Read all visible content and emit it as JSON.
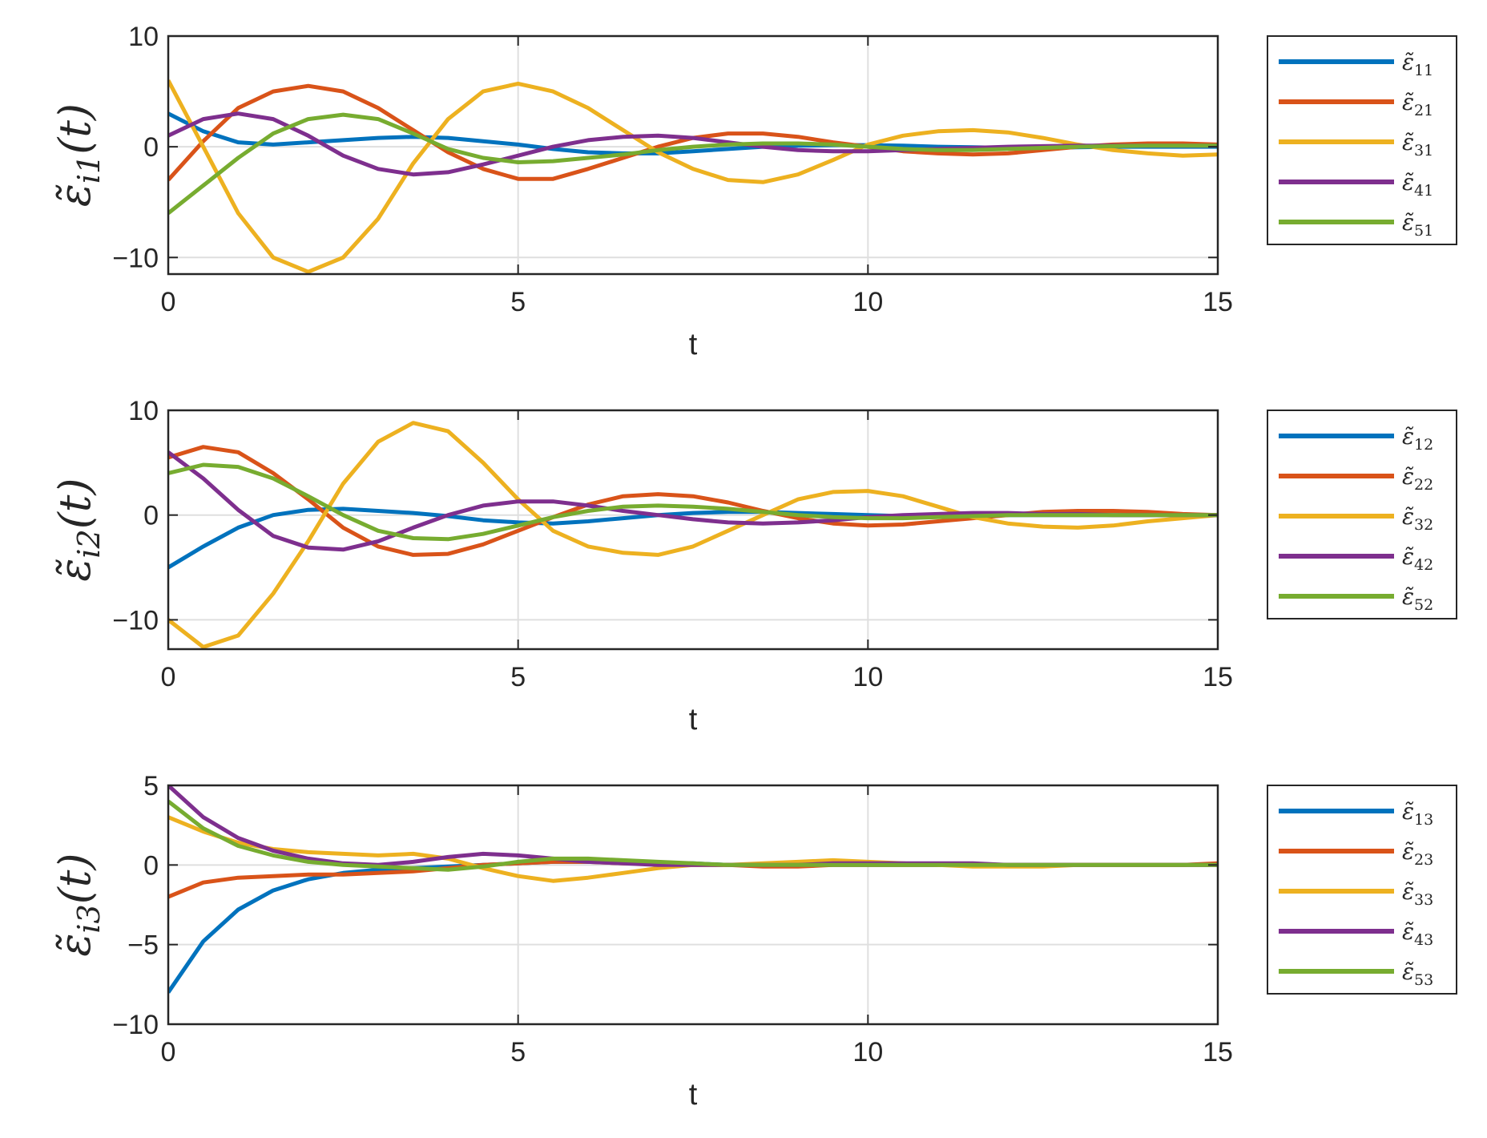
{
  "colors": {
    "blue": "#0072BD",
    "orange": "#D95319",
    "yellow": "#EDB120",
    "purple": "#7E2F8E",
    "green": "#77AC30"
  },
  "chart_data": [
    {
      "type": "line",
      "xlabel": "t",
      "ylabel": "ε̃i1(t)",
      "xlim": [
        0,
        15
      ],
      "ylim": [
        -11.5,
        10
      ],
      "xticks": [
        "0",
        "5",
        "10",
        "15"
      ],
      "yticks": [
        "10",
        "0",
        "−10"
      ],
      "ytick_values": [
        10,
        0,
        -10
      ],
      "grid": true,
      "legend_position": "outside-right",
      "series": [
        {
          "name": "ε̃11",
          "color": "#0072BD",
          "x": [
            0,
            0.5,
            1,
            1.5,
            2,
            2.5,
            3,
            3.5,
            4,
            4.5,
            5,
            5.5,
            6,
            6.5,
            7,
            7.5,
            8,
            8.5,
            9,
            9.5,
            10,
            10.5,
            11,
            11.5,
            12,
            12.5,
            13,
            13.5,
            14,
            14.5,
            15
          ],
          "y": [
            3,
            1.4,
            0.4,
            0.2,
            0.4,
            0.6,
            0.8,
            0.9,
            0.8,
            0.5,
            0.2,
            -0.2,
            -0.5,
            -0.6,
            -0.6,
            -0.4,
            -0.2,
            0,
            0.1,
            0.15,
            0.15,
            0.1,
            0,
            -0.05,
            -0.1,
            -0.1,
            -0.05,
            0,
            0,
            0,
            0
          ]
        },
        {
          "name": "ε̃21",
          "color": "#D95319",
          "x": [
            0,
            0.5,
            1,
            1.5,
            2,
            2.5,
            3,
            3.5,
            4,
            4.5,
            5,
            5.5,
            6,
            6.5,
            7,
            7.5,
            8,
            8.5,
            9,
            9.5,
            10,
            10.5,
            11,
            11.5,
            12,
            12.5,
            13,
            13.5,
            14,
            14.5,
            15
          ],
          "y": [
            -3,
            0.5,
            3.5,
            5,
            5.5,
            5,
            3.5,
            1.5,
            -0.5,
            -2,
            -2.9,
            -2.9,
            -2,
            -1,
            0,
            0.8,
            1.2,
            1.2,
            0.9,
            0.4,
            0,
            -0.4,
            -0.6,
            -0.7,
            -0.6,
            -0.3,
            0,
            0.2,
            0.3,
            0.3,
            0.2
          ]
        },
        {
          "name": "ε̃31",
          "color": "#EDB120",
          "x": [
            0,
            0.5,
            1,
            1.5,
            2,
            2.5,
            3,
            3.5,
            4,
            4.5,
            5,
            5.5,
            6,
            6.5,
            7,
            7.5,
            8,
            8.5,
            9,
            9.5,
            10,
            10.5,
            11,
            11.5,
            12,
            12.5,
            13,
            13.5,
            14,
            14.5,
            15
          ],
          "y": [
            6,
            0,
            -6,
            -10,
            -11.3,
            -10,
            -6.5,
            -1.5,
            2.5,
            5,
            5.7,
            5,
            3.5,
            1.5,
            -0.5,
            -2,
            -3,
            -3.2,
            -2.5,
            -1.2,
            0.2,
            1,
            1.4,
            1.5,
            1.3,
            0.8,
            0.2,
            -0.3,
            -0.6,
            -0.8,
            -0.7
          ]
        },
        {
          "name": "ε̃41",
          "color": "#7E2F8E",
          "x": [
            0,
            0.5,
            1,
            1.5,
            2,
            2.5,
            3,
            3.5,
            4,
            4.5,
            5,
            5.5,
            6,
            6.5,
            7,
            7.5,
            8,
            8.5,
            9,
            9.5,
            10,
            10.5,
            11,
            11.5,
            12,
            12.5,
            13,
            13.5,
            14,
            14.5,
            15
          ],
          "y": [
            1,
            2.5,
            3,
            2.5,
            1,
            -0.8,
            -2,
            -2.5,
            -2.3,
            -1.6,
            -0.8,
            0,
            0.6,
            0.9,
            1,
            0.8,
            0.4,
            0,
            -0.3,
            -0.4,
            -0.4,
            -0.3,
            -0.2,
            -0.1,
            0,
            0.05,
            0.1,
            0.1,
            0.1,
            0.1,
            0.1
          ]
        },
        {
          "name": "ε̃51",
          "color": "#77AC30",
          "x": [
            0,
            0.5,
            1,
            1.5,
            2,
            2.5,
            3,
            3.5,
            4,
            4.5,
            5,
            5.5,
            6,
            6.5,
            7,
            7.5,
            8,
            8.5,
            9,
            9.5,
            10,
            10.5,
            11,
            11.5,
            12,
            12.5,
            13,
            13.5,
            14,
            14.5,
            15
          ],
          "y": [
            -6,
            -3.5,
            -1,
            1.2,
            2.5,
            2.9,
            2.5,
            1.2,
            -0.2,
            -1,
            -1.4,
            -1.3,
            -1,
            -0.7,
            -0.3,
            0,
            0.2,
            0.3,
            0.3,
            0.2,
            0,
            -0.2,
            -0.3,
            -0.3,
            -0.2,
            -0.1,
            0,
            0.05,
            0.1,
            0.1,
            0.1
          ]
        }
      ]
    },
    {
      "type": "line",
      "xlabel": "t",
      "ylabel": "ε̃i2(t)",
      "xlim": [
        0,
        15
      ],
      "ylim": [
        -12.8,
        10
      ],
      "xticks": [
        "0",
        "5",
        "10",
        "15"
      ],
      "yticks": [
        "10",
        "0",
        "−10"
      ],
      "ytick_values": [
        10,
        0,
        -10
      ],
      "grid": true,
      "legend_position": "outside-right",
      "series": [
        {
          "name": "ε̃12",
          "color": "#0072BD",
          "x": [
            0,
            0.5,
            1,
            1.5,
            2,
            2.5,
            3,
            3.5,
            4,
            4.5,
            5,
            5.5,
            6,
            6.5,
            7,
            7.5,
            8,
            8.5,
            9,
            9.5,
            10,
            10.5,
            11,
            11.5,
            12,
            12.5,
            13,
            13.5,
            14,
            14.5,
            15
          ],
          "y": [
            -5,
            -3,
            -1.2,
            0,
            0.5,
            0.6,
            0.4,
            0.2,
            -0.1,
            -0.5,
            -0.7,
            -0.8,
            -0.6,
            -0.3,
            0,
            0.2,
            0.3,
            0.3,
            0.2,
            0.1,
            0,
            -0.1,
            -0.1,
            -0.1,
            0,
            0,
            0,
            0,
            0,
            0,
            0
          ]
        },
        {
          "name": "ε̃22",
          "color": "#D95319",
          "x": [
            0,
            0.5,
            1,
            1.5,
            2,
            2.5,
            3,
            3.5,
            4,
            4.5,
            5,
            5.5,
            6,
            6.5,
            7,
            7.5,
            8,
            8.5,
            9,
            9.5,
            10,
            10.5,
            11,
            11.5,
            12,
            12.5,
            13,
            13.5,
            14,
            14.5,
            15
          ],
          "y": [
            5.5,
            6.5,
            6,
            4,
            1.5,
            -1.2,
            -3,
            -3.8,
            -3.7,
            -2.8,
            -1.5,
            -0.2,
            1,
            1.8,
            2,
            1.8,
            1.2,
            0.4,
            -0.3,
            -0.8,
            -1,
            -0.9,
            -0.6,
            -0.3,
            0,
            0.3,
            0.4,
            0.4,
            0.3,
            0.1,
            0
          ]
        },
        {
          "name": "ε̃32",
          "color": "#EDB120",
          "x": [
            0,
            0.5,
            1,
            1.5,
            2,
            2.5,
            3,
            3.5,
            4,
            4.5,
            5,
            5.5,
            6,
            6.5,
            7,
            7.5,
            8,
            8.5,
            9,
            9.5,
            10,
            10.5,
            11,
            11.5,
            12,
            12.5,
            13,
            13.5,
            14,
            14.5,
            15
          ],
          "y": [
            -10,
            -12.6,
            -11.5,
            -7.5,
            -2.5,
            3,
            7,
            8.8,
            8,
            5,
            1.5,
            -1.5,
            -3,
            -3.6,
            -3.8,
            -3,
            -1.5,
            0,
            1.5,
            2.2,
            2.3,
            1.8,
            0.8,
            -0.2,
            -0.8,
            -1.1,
            -1.2,
            -1,
            -0.6,
            -0.3,
            0
          ]
        },
        {
          "name": "ε̃42",
          "color": "#7E2F8E",
          "x": [
            0,
            0.5,
            1,
            1.5,
            2,
            2.5,
            3,
            3.5,
            4,
            4.5,
            5,
            5.5,
            6,
            6.5,
            7,
            7.5,
            8,
            8.5,
            9,
            9.5,
            10,
            10.5,
            11,
            11.5,
            12,
            12.5,
            13,
            13.5,
            14,
            14.5,
            15
          ],
          "y": [
            6,
            3.5,
            0.5,
            -2,
            -3.1,
            -3.3,
            -2.5,
            -1.2,
            0,
            0.9,
            1.3,
            1.3,
            0.9,
            0.4,
            0,
            -0.4,
            -0.7,
            -0.8,
            -0.7,
            -0.5,
            -0.2,
            0,
            0.1,
            0.2,
            0.2,
            0.1,
            0.1,
            0,
            0,
            0,
            0
          ]
        },
        {
          "name": "ε̃52",
          "color": "#77AC30",
          "x": [
            0,
            0.5,
            1,
            1.5,
            2,
            2.5,
            3,
            3.5,
            4,
            4.5,
            5,
            5.5,
            6,
            6.5,
            7,
            7.5,
            8,
            8.5,
            9,
            9.5,
            10,
            10.5,
            11,
            11.5,
            12,
            12.5,
            13,
            13.5,
            14,
            14.5,
            15
          ],
          "y": [
            4,
            4.8,
            4.6,
            3.5,
            1.8,
            0,
            -1.5,
            -2.2,
            -2.3,
            -1.8,
            -1,
            -0.2,
            0.4,
            0.8,
            0.9,
            0.8,
            0.6,
            0.3,
            0,
            -0.2,
            -0.3,
            -0.3,
            -0.2,
            -0.1,
            0,
            0,
            0,
            0,
            0,
            0,
            0
          ]
        }
      ]
    },
    {
      "type": "line",
      "xlabel": "t",
      "ylabel": "ε̃i3(t)",
      "xlim": [
        0,
        15
      ],
      "ylim": [
        -10,
        5
      ],
      "xticks": [
        "0",
        "5",
        "10",
        "15"
      ],
      "yticks": [
        "5",
        "0",
        "−5",
        "−10"
      ],
      "ytick_values": [
        5,
        0,
        -5,
        -10
      ],
      "grid": true,
      "legend_position": "outside-right",
      "series": [
        {
          "name": "ε̃13",
          "color": "#0072BD",
          "x": [
            0,
            0.5,
            1,
            1.5,
            2,
            2.5,
            3,
            3.5,
            4,
            4.5,
            5,
            5.5,
            6,
            6.5,
            7,
            7.5,
            8,
            8.5,
            9,
            9.5,
            10,
            10.5,
            11,
            11.5,
            12,
            12.5,
            13,
            13.5,
            14,
            14.5,
            15
          ],
          "y": [
            -8,
            -4.8,
            -2.8,
            -1.6,
            -0.9,
            -0.5,
            -0.3,
            -0.2,
            -0.1,
            0,
            0.1,
            0.2,
            0.2,
            0.2,
            0.1,
            0.1,
            0,
            0,
            0,
            0,
            0,
            0,
            0,
            0,
            0,
            0,
            0,
            0,
            0,
            0,
            0
          ]
        },
        {
          "name": "ε̃23",
          "color": "#D95319",
          "x": [
            0,
            0.5,
            1,
            1.5,
            2,
            2.5,
            3,
            3.5,
            4,
            4.5,
            5,
            5.5,
            6,
            6.5,
            7,
            7.5,
            8,
            8.5,
            9,
            9.5,
            10,
            10.5,
            11,
            11.5,
            12,
            12.5,
            13,
            13.5,
            14,
            14.5,
            15
          ],
          "y": [
            -2,
            -1.1,
            -0.8,
            -0.7,
            -0.6,
            -0.6,
            -0.5,
            -0.4,
            -0.2,
            0,
            0.1,
            0.2,
            0.2,
            0.1,
            0.1,
            0,
            0,
            -0.1,
            -0.1,
            0,
            0,
            0,
            0,
            0,
            0,
            0,
            0,
            0,
            0,
            0,
            0.1
          ]
        },
        {
          "name": "ε̃33",
          "color": "#EDB120",
          "x": [
            0,
            0.5,
            1,
            1.5,
            2,
            2.5,
            3,
            3.5,
            4,
            4.5,
            5,
            5.5,
            6,
            6.5,
            7,
            7.5,
            8,
            8.5,
            9,
            9.5,
            10,
            10.5,
            11,
            11.5,
            12,
            12.5,
            13,
            13.5,
            14,
            14.5,
            15
          ],
          "y": [
            3,
            2.1,
            1.4,
            1,
            0.8,
            0.7,
            0.6,
            0.7,
            0.4,
            -0.2,
            -0.7,
            -1,
            -0.8,
            -0.5,
            -0.2,
            0,
            0,
            0.1,
            0.2,
            0.3,
            0.2,
            0.1,
            0,
            -0.1,
            -0.1,
            -0.1,
            0,
            0,
            0,
            0,
            0
          ]
        },
        {
          "name": "ε̃43",
          "color": "#7E2F8E",
          "x": [
            0,
            0.5,
            1,
            1.5,
            2,
            2.5,
            3,
            3.5,
            4,
            4.5,
            5,
            5.5,
            6,
            6.5,
            7,
            7.5,
            8,
            8.5,
            9,
            9.5,
            10,
            10.5,
            11,
            11.5,
            12,
            12.5,
            13,
            13.5,
            14,
            14.5,
            15
          ],
          "y": [
            5,
            3,
            1.7,
            0.9,
            0.4,
            0.1,
            0,
            0.2,
            0.5,
            0.7,
            0.6,
            0.4,
            0.2,
            0.1,
            0,
            0,
            0,
            0,
            0,
            0.1,
            0.1,
            0.1,
            0.1,
            0.1,
            0,
            0,
            0,
            0,
            0,
            0,
            0
          ]
        },
        {
          "name": "ε̃53",
          "color": "#77AC30",
          "x": [
            0,
            0.5,
            1,
            1.5,
            2,
            2.5,
            3,
            3.5,
            4,
            4.5,
            5,
            5.5,
            6,
            6.5,
            7,
            7.5,
            8,
            8.5,
            9,
            9.5,
            10,
            10.5,
            11,
            11.5,
            12,
            12.5,
            13,
            13.5,
            14,
            14.5,
            15
          ],
          "y": [
            4,
            2.3,
            1.2,
            0.6,
            0.2,
            0,
            -0.1,
            -0.2,
            -0.3,
            -0.1,
            0.2,
            0.4,
            0.4,
            0.3,
            0.2,
            0.1,
            0,
            0,
            0,
            0,
            0,
            0,
            0,
            0,
            0,
            0,
            0,
            0,
            0,
            0,
            0
          ]
        }
      ]
    }
  ]
}
